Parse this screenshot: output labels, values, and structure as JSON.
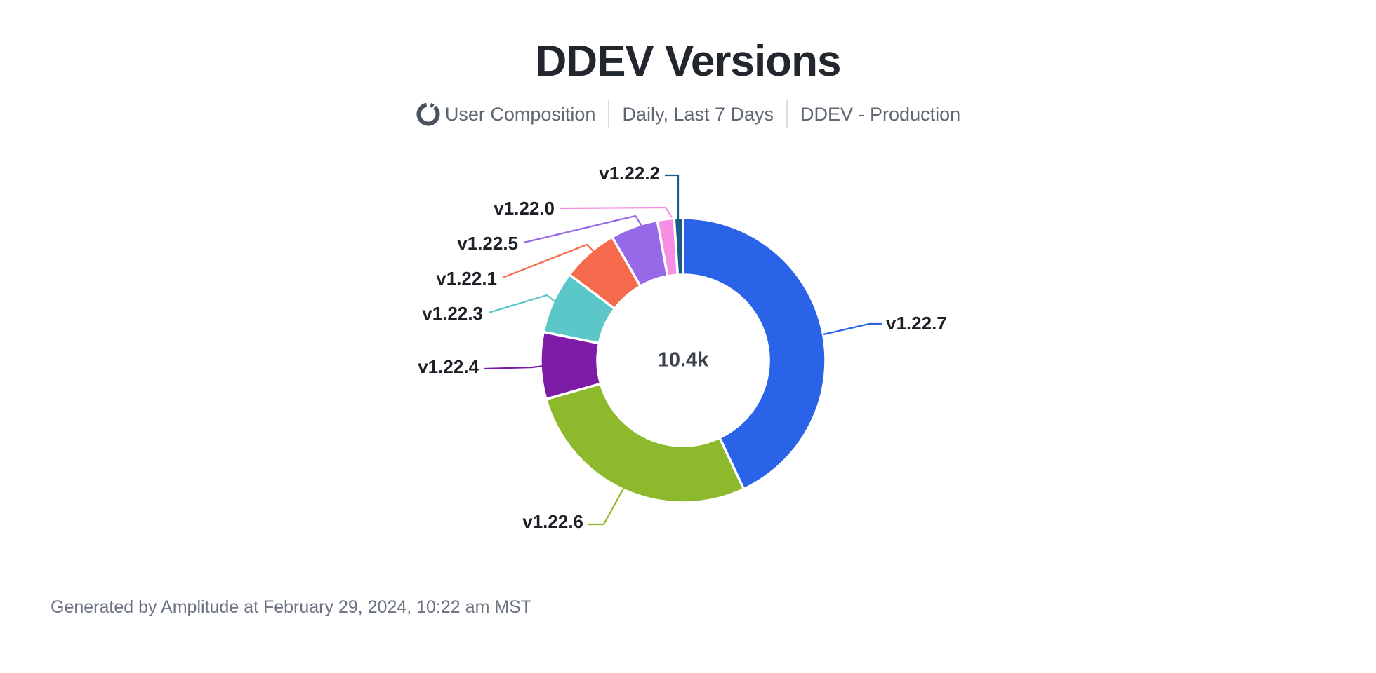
{
  "header": {
    "title": "DDEV Versions"
  },
  "subtitle": {
    "metric_icon": "donut-chart-icon",
    "metric_label": "User Composition",
    "range_label": "Daily, Last 7 Days",
    "project_label": "DDEV - Production"
  },
  "chart_data": {
    "type": "pie",
    "title": "DDEV Versions",
    "donut": true,
    "center_label": "10.4k",
    "total_users_label": "10.4k",
    "legend_position": "none",
    "start_angle_deg": 0,
    "direction": "clockwise",
    "slices": [
      {
        "label": "v1.22.7",
        "percent": 43.0,
        "color": "#2b63e8"
      },
      {
        "label": "v1.22.6",
        "percent": 27.6,
        "color": "#8cba2c"
      },
      {
        "label": "v1.22.4",
        "percent": 7.6,
        "color": "#7c1ca7"
      },
      {
        "label": "v1.22.3",
        "percent": 7.1,
        "color": "#5cc7c9"
      },
      {
        "label": "v1.22.1",
        "percent": 6.4,
        "color": "#f5694d"
      },
      {
        "label": "v1.22.5",
        "percent": 5.4,
        "color": "#9669e6"
      },
      {
        "label": "v1.22.0",
        "percent": 1.9,
        "color": "#f68fe4"
      },
      {
        "label": "v1.22.2",
        "percent": 1.0,
        "color": "#1b5d80"
      }
    ]
  },
  "footer": {
    "text": "Generated by Amplitude at February 29, 2024, 10:22 am MST"
  }
}
